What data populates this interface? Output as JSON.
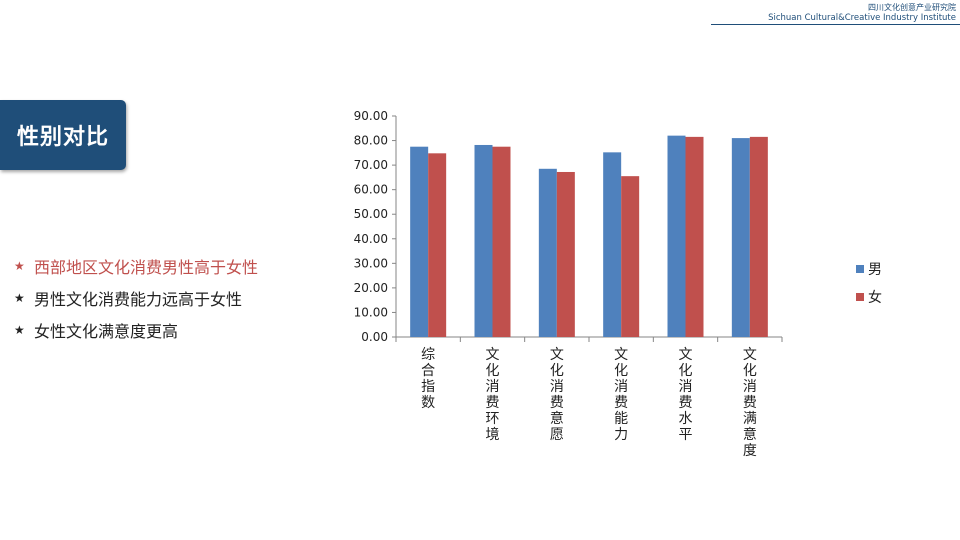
{
  "header": {
    "cn": "四川文化创意产业研究院",
    "en": "Sichuan Cultural&Creative Industry Institute"
  },
  "title": "性别对比",
  "bullets": [
    {
      "text": "西部地区文化消费男性高于女性",
      "highlight": true
    },
    {
      "text": "男性文化消费能力远高于女性",
      "highlight": false
    },
    {
      "text": "女性文化满意度更高",
      "highlight": false
    }
  ],
  "colors": {
    "brand": "#1f4e79",
    "male": "#4f81bd",
    "female": "#c0504d",
    "highlight_text": "#c0504d"
  },
  "chart_data": {
    "type": "bar",
    "categories": [
      "综合指数",
      "文化消费环境",
      "文化消费意愿",
      "文化消费能力",
      "文化消费水平",
      "文化消费满意度"
    ],
    "series": [
      {
        "name": "男",
        "values": [
          77.5,
          78.2,
          68.5,
          75.2,
          82.0,
          81.0
        ]
      },
      {
        "name": "女",
        "values": [
          74.8,
          77.5,
          67.2,
          65.5,
          81.5,
          81.5
        ]
      }
    ],
    "ylim": [
      0,
      90
    ],
    "yticks": [
      "0.00",
      "10.00",
      "20.00",
      "30.00",
      "40.00",
      "50.00",
      "60.00",
      "70.00",
      "80.00",
      "90.00"
    ],
    "legend": "right",
    "grid": false
  }
}
